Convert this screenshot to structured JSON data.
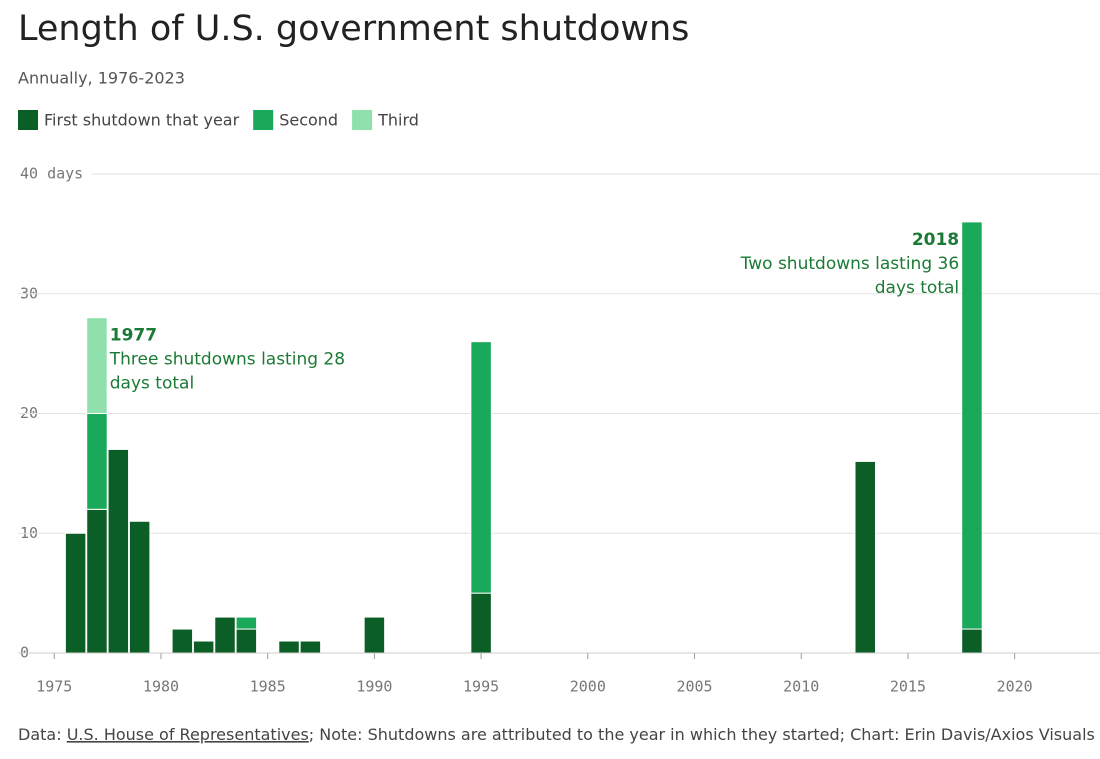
{
  "chart_data": {
    "type": "bar",
    "stacked": true,
    "title": "Length of U.S. government shutdowns",
    "subtitle": "Annually, 1976-2023",
    "x": [
      1976,
      1977,
      1978,
      1979,
      1981,
      1982,
      1983,
      1984,
      1986,
      1987,
      1990,
      1995,
      2013,
      2018
    ],
    "series": [
      {
        "name": "First shutdown that year",
        "color": "#0b5e26",
        "values": [
          10,
          12,
          17,
          11,
          2,
          1,
          3,
          2,
          1,
          1,
          3,
          5,
          16,
          2
        ]
      },
      {
        "name": "Second",
        "color": "#1aa85a",
        "values": [
          null,
          8,
          null,
          null,
          null,
          null,
          null,
          1,
          null,
          null,
          null,
          21,
          null,
          34
        ]
      },
      {
        "name": "Third",
        "color": "#8fe0ad",
        "values": [
          null,
          8,
          null,
          null,
          null,
          null,
          null,
          null,
          null,
          null,
          null,
          null,
          null,
          null
        ]
      }
    ],
    "xlim": [
      1973.3,
      2024
    ],
    "xticks": [
      1975,
      1980,
      1985,
      1990,
      1995,
      2000,
      2005,
      2010,
      2015,
      2020
    ],
    "ylim": [
      0,
      40
    ],
    "yticks": [
      0,
      10,
      20,
      30,
      {
        "value": 40,
        "label": "40 days"
      }
    ],
    "grid": true,
    "annotations": [
      {
        "x": 1977,
        "y": 28,
        "title": "1977",
        "lines": [
          "Three shutdowns lasting 28",
          "days total"
        ]
      },
      {
        "x": 2018,
        "y": 36,
        "title": "2018",
        "lines": [
          "Two shutdowns lasting 36",
          "days total"
        ]
      }
    ],
    "source": {
      "prefix": "Data: ",
      "link": "U.S. House of Representatives",
      "suffix": "; Note: Shutdowns are attributed to the year in which they started; Chart: Erin Davis/Axios Visuals"
    }
  }
}
